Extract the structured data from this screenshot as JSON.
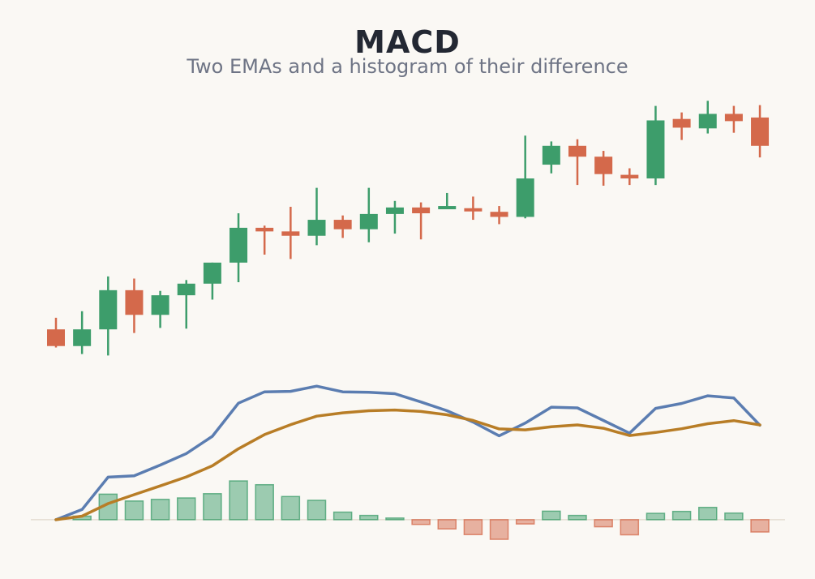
{
  "title": "MACD",
  "subtitle": "Two EMAs and a histogram of their difference",
  "colors": {
    "up": "#3d9d6b",
    "down": "#d4694b",
    "macd_line": "#5b7db1",
    "signal_line": "#b87d26",
    "background": "#faf8f4",
    "zero_line": "#e4ddd2"
  },
  "chart_data": [
    {
      "type": "candlestick",
      "panel": "price",
      "grid": false,
      "legend": "none",
      "candles": [
        {
          "open": 48.9,
          "close": 46.6,
          "high": 50.5,
          "low": 46.4
        },
        {
          "open": 46.6,
          "close": 48.9,
          "high": 51.4,
          "low": 45.5
        },
        {
          "open": 48.9,
          "close": 54.3,
          "high": 56.2,
          "low": 45.3
        },
        {
          "open": 54.3,
          "close": 50.9,
          "high": 55.9,
          "low": 48.4
        },
        {
          "open": 50.9,
          "close": 53.6,
          "high": 54.2,
          "low": 49.1
        },
        {
          "open": 53.6,
          "close": 55.2,
          "high": 55.7,
          "low": 49.0
        },
        {
          "open": 55.2,
          "close": 58.1,
          "high": 58.1,
          "low": 53.0
        },
        {
          "open": 58.1,
          "close": 62.9,
          "high": 64.9,
          "low": 55.4
        },
        {
          "open": 62.9,
          "close": 62.4,
          "high": 63.2,
          "low": 59.2
        },
        {
          "open": 62.4,
          "close": 61.8,
          "high": 65.8,
          "low": 58.6
        },
        {
          "open": 61.8,
          "close": 64.0,
          "high": 68.4,
          "low": 60.5
        },
        {
          "open": 64.0,
          "close": 62.7,
          "high": 64.6,
          "low": 61.5
        },
        {
          "open": 62.7,
          "close": 64.8,
          "high": 68.4,
          "low": 60.9
        },
        {
          "open": 64.8,
          "close": 65.7,
          "high": 66.6,
          "low": 62.1
        },
        {
          "open": 65.7,
          "close": 64.9,
          "high": 66.4,
          "low": 61.3
        },
        {
          "open": 65.5,
          "close": 65.9,
          "high": 67.7,
          "low": 65.5
        },
        {
          "open": 65.6,
          "close": 65.2,
          "high": 67.2,
          "low": 64.0
        },
        {
          "open": 65.1,
          "close": 64.4,
          "high": 65.9,
          "low": 63.4
        },
        {
          "open": 64.4,
          "close": 69.7,
          "high": 75.6,
          "low": 64.2
        },
        {
          "open": 71.6,
          "close": 74.2,
          "high": 74.8,
          "low": 70.4
        },
        {
          "open": 74.2,
          "close": 72.7,
          "high": 75.1,
          "low": 68.8
        },
        {
          "open": 72.7,
          "close": 70.3,
          "high": 73.5,
          "low": 68.7
        },
        {
          "open": 70.2,
          "close": 69.7,
          "high": 71.1,
          "low": 68.8
        },
        {
          "open": 69.7,
          "close": 77.7,
          "high": 79.7,
          "low": 68.8
        },
        {
          "open": 77.9,
          "close": 76.7,
          "high": 78.8,
          "low": 75.0
        },
        {
          "open": 76.6,
          "close": 78.6,
          "high": 80.4,
          "low": 75.9
        },
        {
          "open": 78.6,
          "close": 77.6,
          "high": 79.7,
          "low": 76.0
        },
        {
          "open": 78.1,
          "close": 74.2,
          "high": 79.8,
          "low": 72.6
        }
      ],
      "ylim": [
        44,
        82
      ]
    },
    {
      "type": "line",
      "panel": "indicator",
      "grid": false,
      "legend": "none",
      "x": [
        1,
        2,
        3,
        4,
        5,
        6,
        7,
        8,
        9,
        10,
        11,
        12,
        13,
        14,
        15,
        16,
        17,
        18,
        19,
        20,
        21,
        22,
        23,
        24,
        25,
        26,
        27,
        28
      ],
      "series": [
        {
          "color": "#5b7db1",
          "values": [
            0.0,
            0.43,
            1.8,
            1.86,
            2.31,
            2.8,
            3.53,
            4.93,
            5.41,
            5.43,
            5.65,
            5.41,
            5.39,
            5.33,
            4.98,
            4.61,
            4.13,
            3.55,
            4.09,
            4.76,
            4.73,
            4.2,
            3.66,
            4.71,
            4.92,
            5.24,
            5.15,
            4.0
          ]
        },
        {
          "color": "#b87d26",
          "values": [
            0.0,
            0.15,
            0.68,
            1.06,
            1.43,
            1.81,
            2.28,
            3.0,
            3.6,
            4.02,
            4.38,
            4.52,
            4.61,
            4.64,
            4.58,
            4.44,
            4.2,
            3.84,
            3.8,
            3.93,
            4.01,
            3.87,
            3.56,
            3.69,
            3.85,
            4.06,
            4.19,
            4.01
          ]
        },
        {
          "type": "bar",
          "values": [
            0.0,
            0.15,
            1.08,
            0.79,
            0.86,
            0.92,
            1.1,
            1.64,
            1.48,
            0.98,
            0.82,
            0.32,
            0.18,
            0.07,
            -0.2,
            -0.39,
            -0.63,
            -0.83,
            -0.18,
            0.36,
            0.18,
            -0.3,
            -0.64,
            0.27,
            0.35,
            0.52,
            0.28,
            -0.52
          ]
        }
      ],
      "ylim": [
        -1.0,
        6.0
      ]
    }
  ]
}
